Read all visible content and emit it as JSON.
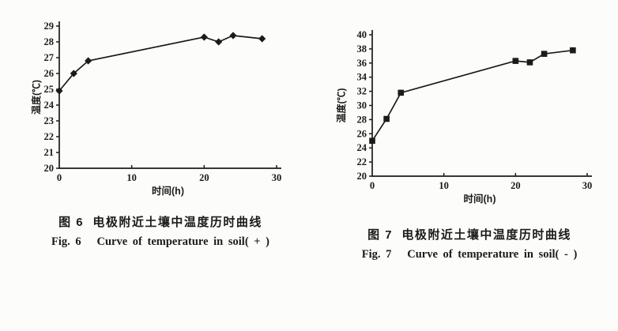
{
  "page": {
    "background_color": "#fcfcfa",
    "ink_color": "#1b1b1b"
  },
  "figures": [
    {
      "caption_zh": "图 6  电极附近土壤中温度历时曲线",
      "caption_en": "Fig. 6   Curve of temperature in soil( + )"
    },
    {
      "caption_zh": "图 7  电极附近土壤中温度历时曲线",
      "caption_en": "Fig. 7   Curve of temperature in soil( - )"
    }
  ],
  "chart_data": [
    {
      "type": "line",
      "figure": "Fig. 6",
      "x": [
        0,
        2,
        4,
        20,
        22,
        24,
        28
      ],
      "y": [
        24.9,
        26.0,
        26.8,
        28.3,
        28.0,
        28.4,
        28.2
      ],
      "xlabel": "时间(h)",
      "ylabel": "温度(℃)",
      "xlim": [
        0,
        30
      ],
      "ylim": [
        20,
        29
      ],
      "xticks": [
        0,
        10,
        20,
        30
      ],
      "yticks": [
        20,
        21,
        22,
        23,
        24,
        25,
        26,
        27,
        28,
        29
      ],
      "marker": "diamond",
      "line_color": "#1b1b1b",
      "grid": false,
      "legend": "none"
    },
    {
      "type": "line",
      "figure": "Fig. 7",
      "x": [
        0,
        2,
        4,
        20,
        22,
        24,
        28
      ],
      "y": [
        25.0,
        28.1,
        31.8,
        36.3,
        36.1,
        37.3,
        37.8
      ],
      "xlabel": "时间(h)",
      "ylabel": "温度(℃)",
      "xlim": [
        0,
        30
      ],
      "ylim": [
        20,
        40
      ],
      "xticks": [
        0,
        10,
        20,
        30
      ],
      "yticks": [
        20,
        22,
        24,
        26,
        28,
        30,
        32,
        34,
        36,
        38,
        40
      ],
      "marker": "square",
      "line_color": "#1b1b1b",
      "grid": false,
      "legend": "none"
    }
  ]
}
